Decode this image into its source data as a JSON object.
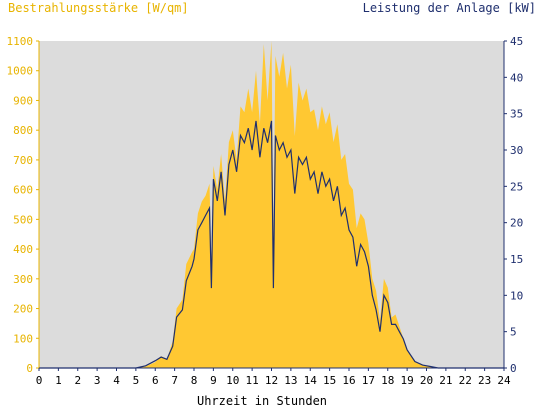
{
  "chart_data": {
    "type": "area",
    "left_axis_title": "Bestrahlungsstärke [W/qm]",
    "right_axis_title": "Leistung der Anlage [kW]",
    "xlabel": "Uhrzeit in Stunden",
    "xlim": [
      0,
      24
    ],
    "ylim_left": [
      0,
      1100
    ],
    "ylim_right": [
      0,
      45
    ],
    "x_ticks": [
      "0",
      "1",
      "2",
      "3",
      "4",
      "5",
      "6",
      "7",
      "8",
      "9",
      "10",
      "11",
      "12",
      "13",
      "14",
      "15",
      "16",
      "17",
      "18",
      "19",
      "20",
      "21",
      "22",
      "23",
      "24"
    ],
    "left_ticks": [
      "0",
      "100",
      "200",
      "300",
      "400",
      "500",
      "600",
      "700",
      "800",
      "900",
      "1000",
      "1100"
    ],
    "right_ticks": [
      "0",
      "5",
      "10",
      "15",
      "20",
      "25",
      "30",
      "35",
      "40",
      "45"
    ],
    "colors": {
      "irradiance": "#ffc832",
      "power": "#1f2f6e",
      "left_axis": "#e8b400",
      "right_axis": "#1f2f6e",
      "plot_bg": "#dcdcdc"
    },
    "grid": false,
    "series": [
      {
        "name": "Bestrahlungsstärke [W/qm]",
        "axis": "left",
        "points": [
          [
            0,
            0
          ],
          [
            5,
            0
          ],
          [
            5.5,
            5
          ],
          [
            6,
            20
          ],
          [
            6.3,
            40
          ],
          [
            6.6,
            30
          ],
          [
            6.9,
            90
          ],
          [
            7.1,
            200
          ],
          [
            7.4,
            230
          ],
          [
            7.6,
            350
          ],
          [
            7.9,
            390
          ],
          [
            8,
            400
          ],
          [
            8.2,
            520
          ],
          [
            8.4,
            560
          ],
          [
            8.6,
            580
          ],
          [
            8.8,
            620
          ],
          [
            8.9,
            350
          ],
          [
            9,
            680
          ],
          [
            9.2,
            600
          ],
          [
            9.4,
            720
          ],
          [
            9.6,
            560
          ],
          [
            9.8,
            760
          ],
          [
            10,
            800
          ],
          [
            10.2,
            700
          ],
          [
            10.4,
            880
          ],
          [
            10.6,
            860
          ],
          [
            10.8,
            940
          ],
          [
            11,
            860
          ],
          [
            11.2,
            1000
          ],
          [
            11.4,
            820
          ],
          [
            11.6,
            1090
          ],
          [
            11.8,
            900
          ],
          [
            12,
            1100
          ],
          [
            12.1,
            400
          ],
          [
            12.2,
            1050
          ],
          [
            12.4,
            980
          ],
          [
            12.6,
            1060
          ],
          [
            12.8,
            940
          ],
          [
            13,
            1020
          ],
          [
            13.2,
            780
          ],
          [
            13.4,
            960
          ],
          [
            13.6,
            900
          ],
          [
            13.8,
            940
          ],
          [
            14,
            860
          ],
          [
            14.2,
            870
          ],
          [
            14.4,
            800
          ],
          [
            14.6,
            880
          ],
          [
            14.8,
            820
          ],
          [
            15,
            860
          ],
          [
            15.2,
            760
          ],
          [
            15.4,
            820
          ],
          [
            15.6,
            700
          ],
          [
            15.8,
            720
          ],
          [
            16,
            620
          ],
          [
            16.2,
            600
          ],
          [
            16.4,
            470
          ],
          [
            16.6,
            520
          ],
          [
            16.8,
            500
          ],
          [
            17,
            420
          ],
          [
            17.2,
            300
          ],
          [
            17.4,
            260
          ],
          [
            17.6,
            160
          ],
          [
            17.8,
            300
          ],
          [
            18,
            270
          ],
          [
            18.2,
            170
          ],
          [
            18.4,
            180
          ],
          [
            18.6,
            140
          ],
          [
            18.8,
            100
          ],
          [
            19,
            60
          ],
          [
            19.4,
            20
          ],
          [
            19.8,
            10
          ],
          [
            20.2,
            5
          ],
          [
            20.6,
            0
          ],
          [
            24,
            0
          ]
        ]
      },
      {
        "name": "Leistung der Anlage [kW]",
        "axis": "right",
        "points": [
          [
            0,
            0
          ],
          [
            5,
            0
          ],
          [
            5.5,
            0.3
          ],
          [
            6,
            1
          ],
          [
            6.3,
            1.5
          ],
          [
            6.6,
            1.2
          ],
          [
            6.9,
            3
          ],
          [
            7.1,
            7
          ],
          [
            7.4,
            8
          ],
          [
            7.6,
            12
          ],
          [
            7.9,
            14
          ],
          [
            8,
            15
          ],
          [
            8.2,
            19
          ],
          [
            8.4,
            20
          ],
          [
            8.6,
            21
          ],
          [
            8.8,
            22
          ],
          [
            8.9,
            11
          ],
          [
            9,
            26
          ],
          [
            9.2,
            23
          ],
          [
            9.4,
            27
          ],
          [
            9.6,
            21
          ],
          [
            9.8,
            28
          ],
          [
            10,
            30
          ],
          [
            10.2,
            27
          ],
          [
            10.4,
            32
          ],
          [
            10.6,
            31
          ],
          [
            10.8,
            33
          ],
          [
            11,
            30
          ],
          [
            11.2,
            34
          ],
          [
            11.4,
            29
          ],
          [
            11.6,
            33
          ],
          [
            11.8,
            31
          ],
          [
            12,
            34
          ],
          [
            12.1,
            11
          ],
          [
            12.2,
            32
          ],
          [
            12.4,
            30
          ],
          [
            12.6,
            31
          ],
          [
            12.8,
            29
          ],
          [
            13,
            30
          ],
          [
            13.2,
            24
          ],
          [
            13.4,
            29
          ],
          [
            13.6,
            28
          ],
          [
            13.8,
            29
          ],
          [
            14,
            26
          ],
          [
            14.2,
            27
          ],
          [
            14.4,
            24
          ],
          [
            14.6,
            27
          ],
          [
            14.8,
            25
          ],
          [
            15,
            26
          ],
          [
            15.2,
            23
          ],
          [
            15.4,
            25
          ],
          [
            15.6,
            21
          ],
          [
            15.8,
            22
          ],
          [
            16,
            19
          ],
          [
            16.2,
            18
          ],
          [
            16.4,
            14
          ],
          [
            16.6,
            17
          ],
          [
            16.8,
            16
          ],
          [
            17,
            14
          ],
          [
            17.2,
            10
          ],
          [
            17.4,
            8
          ],
          [
            17.6,
            5
          ],
          [
            17.8,
            10
          ],
          [
            18,
            9
          ],
          [
            18.2,
            6
          ],
          [
            18.4,
            6
          ],
          [
            18.6,
            5
          ],
          [
            18.8,
            4
          ],
          [
            19,
            2.5
          ],
          [
            19.4,
            0.9
          ],
          [
            19.8,
            0.4
          ],
          [
            20.2,
            0.2
          ],
          [
            20.6,
            0
          ],
          [
            24,
            0
          ]
        ]
      }
    ]
  }
}
